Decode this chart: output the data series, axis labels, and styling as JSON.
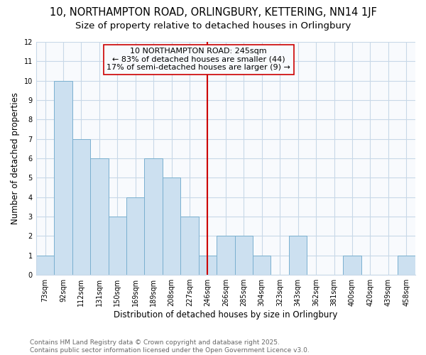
{
  "title": "10, NORTHAMPTON ROAD, ORLINGBURY, KETTERING, NN14 1JF",
  "subtitle": "Size of property relative to detached houses in Orlingbury",
  "xlabel": "Distribution of detached houses by size in Orlingbury",
  "ylabel": "Number of detached properties",
  "bar_labels": [
    "73sqm",
    "92sqm",
    "112sqm",
    "131sqm",
    "150sqm",
    "169sqm",
    "189sqm",
    "208sqm",
    "227sqm",
    "246sqm",
    "266sqm",
    "285sqm",
    "304sqm",
    "323sqm",
    "343sqm",
    "362sqm",
    "381sqm",
    "400sqm",
    "420sqm",
    "439sqm",
    "458sqm"
  ],
  "bar_values": [
    1,
    10,
    7,
    6,
    3,
    4,
    6,
    5,
    3,
    1,
    2,
    2,
    1,
    0,
    2,
    0,
    0,
    1,
    0,
    0,
    1
  ],
  "bar_color": "#cce0f0",
  "bar_edge_color": "#7ab0d0",
  "grid_color": "#c8d8e8",
  "background_color": "#ffffff",
  "plot_bg_color": "#f8fafd",
  "red_line_index": 9,
  "red_line_color": "#cc0000",
  "annotation_text": "10 NORTHAMPTON ROAD: 245sqm\n← 83% of detached houses are smaller (44)\n17% of semi-detached houses are larger (9) →",
  "ylim": [
    0,
    12
  ],
  "yticks": [
    0,
    1,
    2,
    3,
    4,
    5,
    6,
    7,
    8,
    9,
    10,
    11,
    12
  ],
  "footer_line1": "Contains HM Land Registry data © Crown copyright and database right 2025.",
  "footer_line2": "Contains public sector information licensed under the Open Government Licence v3.0.",
  "title_fontsize": 10.5,
  "subtitle_fontsize": 9.5,
  "axis_label_fontsize": 8.5,
  "tick_fontsize": 7,
  "annotation_fontsize": 8,
  "footer_fontsize": 6.5
}
